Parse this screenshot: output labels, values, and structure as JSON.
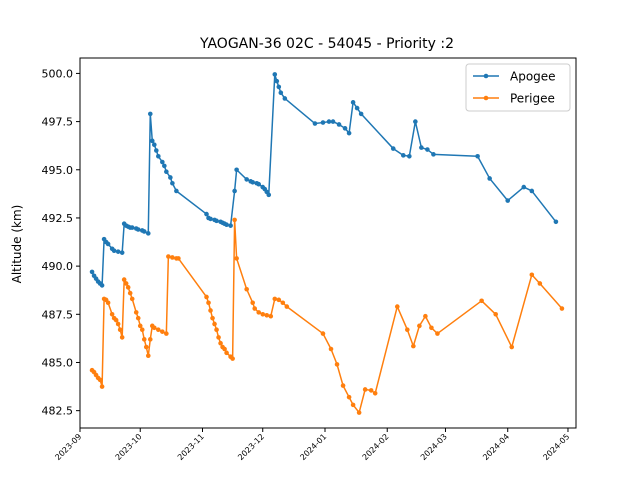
{
  "chart_data": {
    "type": "line",
    "title": "YAOGAN-36 02C - 54045 - Priority :2",
    "xlabel": "",
    "ylabel": "Altitude (km)",
    "xlim": [
      "2023-09-01",
      "2024-05-05"
    ],
    "ylim": [
      481.6,
      500.8
    ],
    "x_ticks": [
      "2023-09",
      "2023-10",
      "2023-11",
      "2023-12",
      "2024-01",
      "2024-02",
      "2024-03",
      "2024-04",
      "2024-05"
    ],
    "y_ticks": [
      482.5,
      485.0,
      487.5,
      490.0,
      492.5,
      495.0,
      497.5,
      500.0
    ],
    "y_tick_labels": [
      "482.5",
      "485.0",
      "487.5",
      "490.0",
      "492.5",
      "495.0",
      "497.5",
      "500.0"
    ],
    "grid": false,
    "legend_position": "top-right",
    "series": [
      {
        "name": "Apogee",
        "color": "#1f77b4",
        "points": [
          [
            "2023-09-07",
            489.7
          ],
          [
            "2023-09-08",
            489.5
          ],
          [
            "2023-09-09",
            489.35
          ],
          [
            "2023-09-10",
            489.2
          ],
          [
            "2023-09-11",
            489.1
          ],
          [
            "2023-09-12",
            489.0
          ],
          [
            "2023-09-13",
            491.4
          ],
          [
            "2023-09-14",
            491.25
          ],
          [
            "2023-09-15",
            491.15
          ],
          [
            "2023-09-17",
            490.9
          ],
          [
            "2023-09-18",
            490.8
          ],
          [
            "2023-09-20",
            490.75
          ],
          [
            "2023-09-22",
            490.7
          ],
          [
            "2023-09-23",
            492.2
          ],
          [
            "2023-09-24",
            492.1
          ],
          [
            "2023-09-25",
            492.05
          ],
          [
            "2023-09-26",
            492.0
          ],
          [
            "2023-09-27",
            492.0
          ],
          [
            "2023-09-29",
            491.95
          ],
          [
            "2023-09-30",
            491.9
          ],
          [
            "2023-10-02",
            491.85
          ],
          [
            "2023-10-03",
            491.8
          ],
          [
            "2023-10-05",
            491.7
          ],
          [
            "2023-10-06",
            497.9
          ],
          [
            "2023-10-07",
            496.5
          ],
          [
            "2023-10-08",
            496.3
          ],
          [
            "2023-10-09",
            496.0
          ],
          [
            "2023-10-10",
            495.7
          ],
          [
            "2023-10-12",
            495.4
          ],
          [
            "2023-10-13",
            495.2
          ],
          [
            "2023-10-14",
            494.9
          ],
          [
            "2023-10-16",
            494.6
          ],
          [
            "2023-10-17",
            494.3
          ],
          [
            "2023-10-19",
            493.9
          ],
          [
            "2023-11-03",
            492.7
          ],
          [
            "2023-11-04",
            492.5
          ],
          [
            "2023-11-05",
            492.45
          ],
          [
            "2023-11-07",
            492.4
          ],
          [
            "2023-11-08",
            492.35
          ],
          [
            "2023-11-10",
            492.3
          ],
          [
            "2023-11-11",
            492.25
          ],
          [
            "2023-11-12",
            492.2
          ],
          [
            "2023-11-13",
            492.15
          ],
          [
            "2023-11-15",
            492.1
          ],
          [
            "2023-11-17",
            493.9
          ],
          [
            "2023-11-18",
            495.0
          ],
          [
            "2023-11-23",
            494.5
          ],
          [
            "2023-11-25",
            494.4
          ],
          [
            "2023-11-26",
            494.35
          ],
          [
            "2023-11-28",
            494.3
          ],
          [
            "2023-11-29",
            494.25
          ],
          [
            "2023-12-01",
            494.1
          ],
          [
            "2023-12-02",
            494.0
          ],
          [
            "2023-12-03",
            493.85
          ],
          [
            "2023-12-04",
            493.7
          ],
          [
            "2023-12-07",
            499.95
          ],
          [
            "2023-12-08",
            499.6
          ],
          [
            "2023-12-09",
            499.3
          ],
          [
            "2023-12-10",
            499.0
          ],
          [
            "2023-12-12",
            498.7
          ],
          [
            "2023-12-27",
            497.4
          ],
          [
            "2023-12-31",
            497.45
          ],
          [
            "2024-01-03",
            497.5
          ],
          [
            "2024-01-05",
            497.5
          ],
          [
            "2024-01-08",
            497.35
          ],
          [
            "2024-01-11",
            497.15
          ],
          [
            "2024-01-13",
            496.9
          ],
          [
            "2024-01-15",
            498.5
          ],
          [
            "2024-01-17",
            498.2
          ],
          [
            "2024-01-19",
            497.9
          ],
          [
            "2024-02-04",
            496.1
          ],
          [
            "2024-02-09",
            495.75
          ],
          [
            "2024-02-12",
            495.7
          ],
          [
            "2024-02-15",
            497.5
          ],
          [
            "2024-02-18",
            496.15
          ],
          [
            "2024-02-21",
            496.05
          ],
          [
            "2024-02-24",
            495.8
          ],
          [
            "2024-03-17",
            495.7
          ],
          [
            "2024-03-23",
            494.55
          ],
          [
            "2024-04-01",
            493.4
          ],
          [
            "2024-04-09",
            494.1
          ],
          [
            "2024-04-13",
            493.9
          ],
          [
            "2024-04-25",
            492.3
          ]
        ]
      },
      {
        "name": "Perigee",
        "color": "#ff7f0e",
        "points": [
          [
            "2023-09-07",
            484.6
          ],
          [
            "2023-09-08",
            484.5
          ],
          [
            "2023-09-09",
            484.35
          ],
          [
            "2023-09-10",
            484.2
          ],
          [
            "2023-09-11",
            484.1
          ],
          [
            "2023-09-12",
            483.75
          ],
          [
            "2023-09-13",
            488.3
          ],
          [
            "2023-09-14",
            488.25
          ],
          [
            "2023-09-15",
            488.1
          ],
          [
            "2023-09-17",
            487.5
          ],
          [
            "2023-09-18",
            487.3
          ],
          [
            "2023-09-19",
            487.2
          ],
          [
            "2023-09-20",
            487.0
          ],
          [
            "2023-09-21",
            486.7
          ],
          [
            "2023-09-22",
            486.3
          ],
          [
            "2023-09-23",
            489.3
          ],
          [
            "2023-09-24",
            489.1
          ],
          [
            "2023-09-25",
            488.9
          ],
          [
            "2023-09-26",
            488.6
          ],
          [
            "2023-09-27",
            488.3
          ],
          [
            "2023-09-29",
            487.6
          ],
          [
            "2023-09-30",
            487.3
          ],
          [
            "2023-10-01",
            486.9
          ],
          [
            "2023-10-02",
            486.7
          ],
          [
            "2023-10-03",
            486.2
          ],
          [
            "2023-10-04",
            485.8
          ],
          [
            "2023-10-05",
            485.35
          ],
          [
            "2023-10-06",
            486.2
          ],
          [
            "2023-10-07",
            486.9
          ],
          [
            "2023-10-08",
            486.8
          ],
          [
            "2023-10-10",
            486.7
          ],
          [
            "2023-10-12",
            486.6
          ],
          [
            "2023-10-14",
            486.5
          ],
          [
            "2023-10-15",
            490.5
          ],
          [
            "2023-10-17",
            490.45
          ],
          [
            "2023-10-19",
            490.4
          ],
          [
            "2023-10-20",
            490.4
          ],
          [
            "2023-11-03",
            488.4
          ],
          [
            "2023-11-04",
            488.1
          ],
          [
            "2023-11-05",
            487.7
          ],
          [
            "2023-11-06",
            487.3
          ],
          [
            "2023-11-07",
            487.0
          ],
          [
            "2023-11-08",
            486.7
          ],
          [
            "2023-11-09",
            486.3
          ],
          [
            "2023-11-10",
            486.0
          ],
          [
            "2023-11-11",
            485.8
          ],
          [
            "2023-11-12",
            485.7
          ],
          [
            "2023-11-13",
            485.5
          ],
          [
            "2023-11-15",
            485.3
          ],
          [
            "2023-11-16",
            485.2
          ],
          [
            "2023-11-17",
            492.4
          ],
          [
            "2023-11-18",
            490.4
          ],
          [
            "2023-11-23",
            488.8
          ],
          [
            "2023-11-26",
            488.1
          ],
          [
            "2023-11-27",
            487.8
          ],
          [
            "2023-11-29",
            487.6
          ],
          [
            "2023-12-01",
            487.5
          ],
          [
            "2023-12-03",
            487.45
          ],
          [
            "2023-12-05",
            487.4
          ],
          [
            "2023-12-07",
            488.3
          ],
          [
            "2023-12-09",
            488.25
          ],
          [
            "2023-12-11",
            488.1
          ],
          [
            "2023-12-13",
            487.9
          ],
          [
            "2023-12-31",
            486.5
          ],
          [
            "2024-01-04",
            485.7
          ],
          [
            "2024-01-07",
            484.9
          ],
          [
            "2024-01-10",
            483.8
          ],
          [
            "2024-01-13",
            483.2
          ],
          [
            "2024-01-15",
            482.8
          ],
          [
            "2024-01-18",
            482.4
          ],
          [
            "2024-01-21",
            483.6
          ],
          [
            "2024-01-24",
            483.55
          ],
          [
            "2024-01-26",
            483.4
          ],
          [
            "2024-02-06",
            487.9
          ],
          [
            "2024-02-11",
            486.7
          ],
          [
            "2024-02-14",
            485.85
          ],
          [
            "2024-02-17",
            486.9
          ],
          [
            "2024-02-20",
            487.4
          ],
          [
            "2024-02-23",
            486.8
          ],
          [
            "2024-02-26",
            486.5
          ],
          [
            "2024-03-19",
            488.2
          ],
          [
            "2024-03-26",
            487.5
          ],
          [
            "2024-04-03",
            485.8
          ],
          [
            "2024-04-13",
            489.55
          ],
          [
            "2024-04-17",
            489.1
          ],
          [
            "2024-04-28",
            487.8
          ]
        ]
      }
    ]
  }
}
